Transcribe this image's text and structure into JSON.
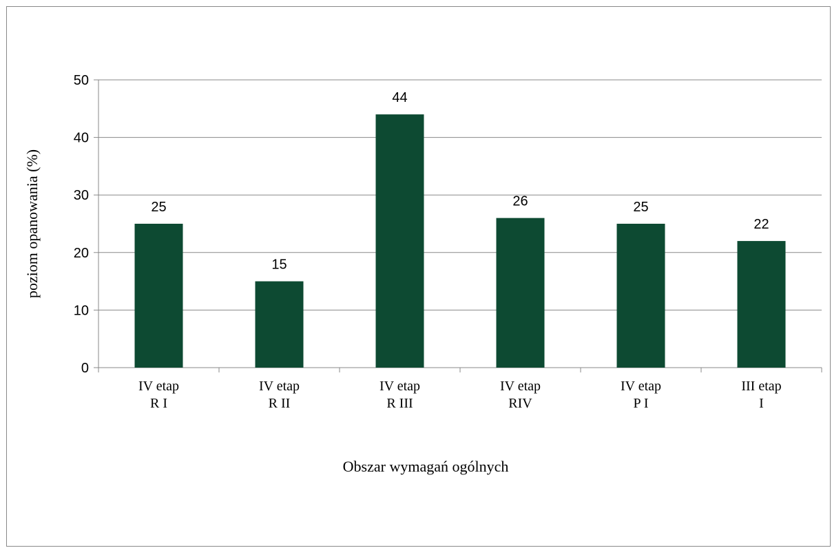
{
  "chart_data": {
    "type": "bar",
    "categories": [
      [
        "IV etap",
        "R I"
      ],
      [
        "IV etap",
        "R II"
      ],
      [
        "IV etap",
        "R III"
      ],
      [
        "IV etap",
        "RIV"
      ],
      [
        "IV etap",
        "P I"
      ],
      [
        "III etap",
        "I"
      ]
    ],
    "values": [
      25,
      15,
      44,
      26,
      25,
      22
    ],
    "xlabel": "Obszar wymagań ogólnych",
    "ylabel": "poziom opanowania (%)",
    "ylim": [
      0,
      50
    ],
    "yticks": [
      0,
      10,
      20,
      30,
      40,
      50
    ],
    "grid": true,
    "legend": "none",
    "bar_color": "#0d4a32",
    "grid_color": "#888888"
  }
}
